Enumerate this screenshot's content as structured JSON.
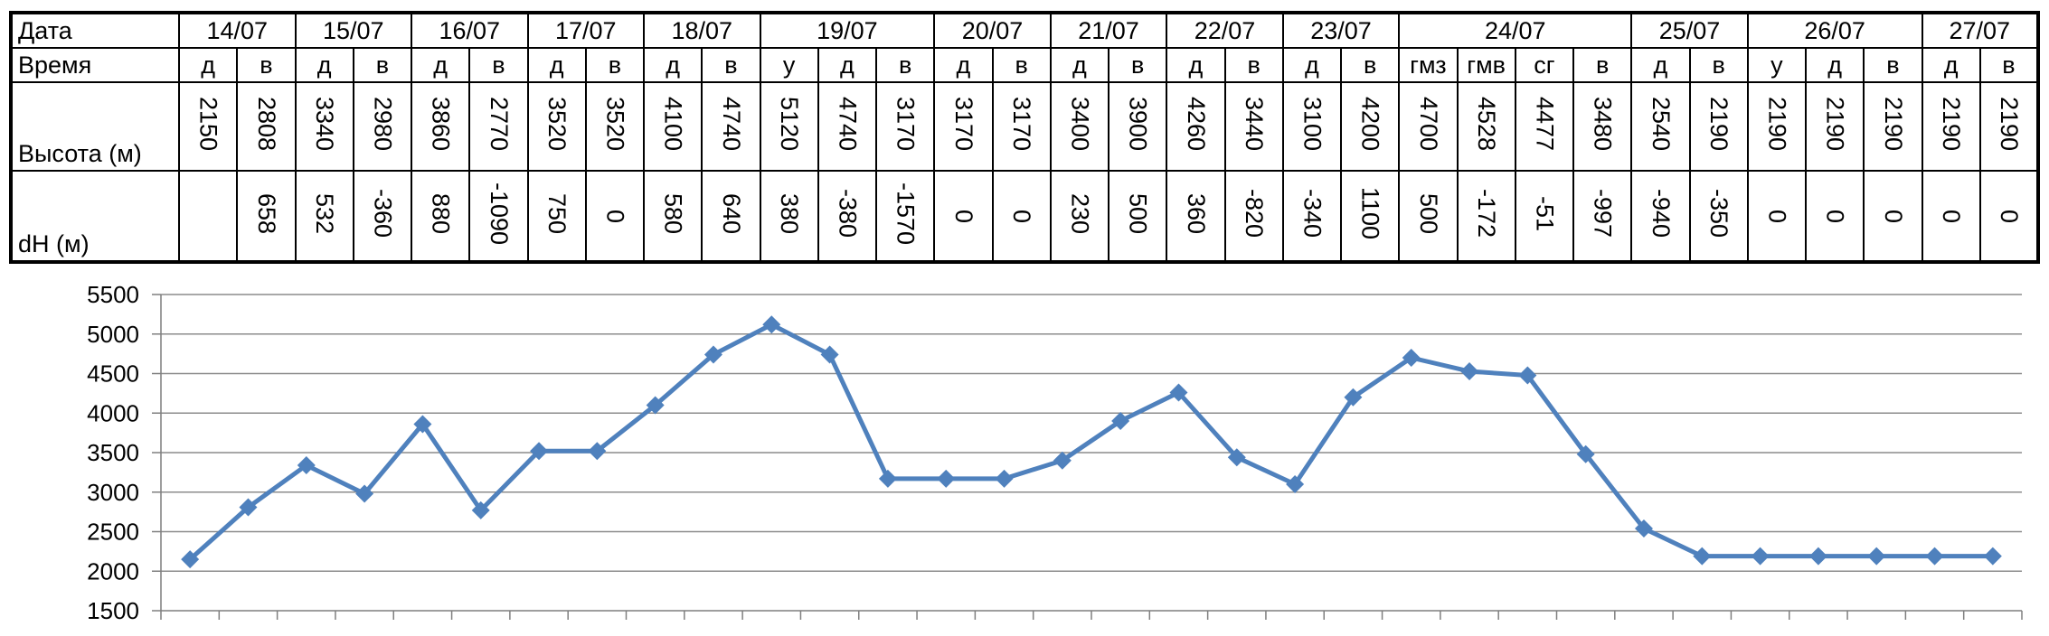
{
  "table": {
    "labels": {
      "date": "Дата",
      "time": "Время",
      "alt": "Высота (м)",
      "dh": "dH (м)"
    },
    "dates": [
      {
        "label": "14/07",
        "span": 2
      },
      {
        "label": "15/07",
        "span": 2
      },
      {
        "label": "16/07",
        "span": 2
      },
      {
        "label": "17/07",
        "span": 2
      },
      {
        "label": "18/07",
        "span": 2
      },
      {
        "label": "19/07",
        "span": 3
      },
      {
        "label": "20/07",
        "span": 2
      },
      {
        "label": "21/07",
        "span": 2
      },
      {
        "label": "22/07",
        "span": 2
      },
      {
        "label": "23/07",
        "span": 2
      },
      {
        "label": "24/07",
        "span": 4
      },
      {
        "label": "25/07",
        "span": 2
      },
      {
        "label": "26/07",
        "span": 3
      },
      {
        "label": "27/07",
        "span": 2
      }
    ],
    "times": [
      "д",
      "в",
      "д",
      "в",
      "д",
      "в",
      "д",
      "в",
      "д",
      "в",
      "у",
      "д",
      "в",
      "д",
      "в",
      "д",
      "в",
      "д",
      "в",
      "д",
      "в",
      "гмз",
      "гмв",
      "сг",
      "в",
      "д",
      "в",
      "у",
      "д",
      "в",
      "д",
      "в"
    ],
    "altitudes": [
      "2150",
      "2808",
      "3340",
      "2980",
      "3860",
      "2770",
      "3520",
      "3520",
      "4100",
      "4740",
      "5120",
      "4740",
      "3170",
      "3170",
      "3170",
      "3400",
      "3900",
      "4260",
      "3440",
      "3100",
      "4200",
      "4700",
      "4528",
      "4477",
      "3480",
      "2540",
      "2190",
      "2190",
      "2190",
      "2190",
      "2190",
      "2190"
    ],
    "dh": [
      "",
      "658",
      "532",
      "-360",
      "880",
      "-1090",
      "750",
      "0",
      "580",
      "640",
      "380",
      "-380",
      "-1570",
      "0",
      "0",
      "230",
      "500",
      "360",
      "-820",
      "-340",
      "1100",
      "500",
      "-172",
      "-51",
      "-997",
      "-940",
      "-350",
      "0",
      "0",
      "0",
      "0",
      "0"
    ]
  },
  "chart_data": {
    "type": "line",
    "title": "",
    "xlabel": "",
    "ylabel": "",
    "ylim": [
      1500,
      5500
    ],
    "yticks": [
      1500,
      2000,
      2500,
      3000,
      3500,
      4000,
      4500,
      5000,
      5500
    ],
    "grid": true,
    "legend": "none",
    "color": "#4F81BD",
    "marker": "diamond",
    "series": [
      {
        "values": [
          2150,
          2808,
          3340,
          2980,
          3860,
          2770,
          3520,
          3520,
          4100,
          4740,
          5120,
          4740,
          3170,
          3170,
          3170,
          3400,
          3900,
          4260,
          3440,
          3100,
          4200,
          4700,
          4528,
          4477,
          3480,
          2540,
          2190,
          2190,
          2190,
          2190,
          2190,
          2190
        ]
      }
    ]
  }
}
